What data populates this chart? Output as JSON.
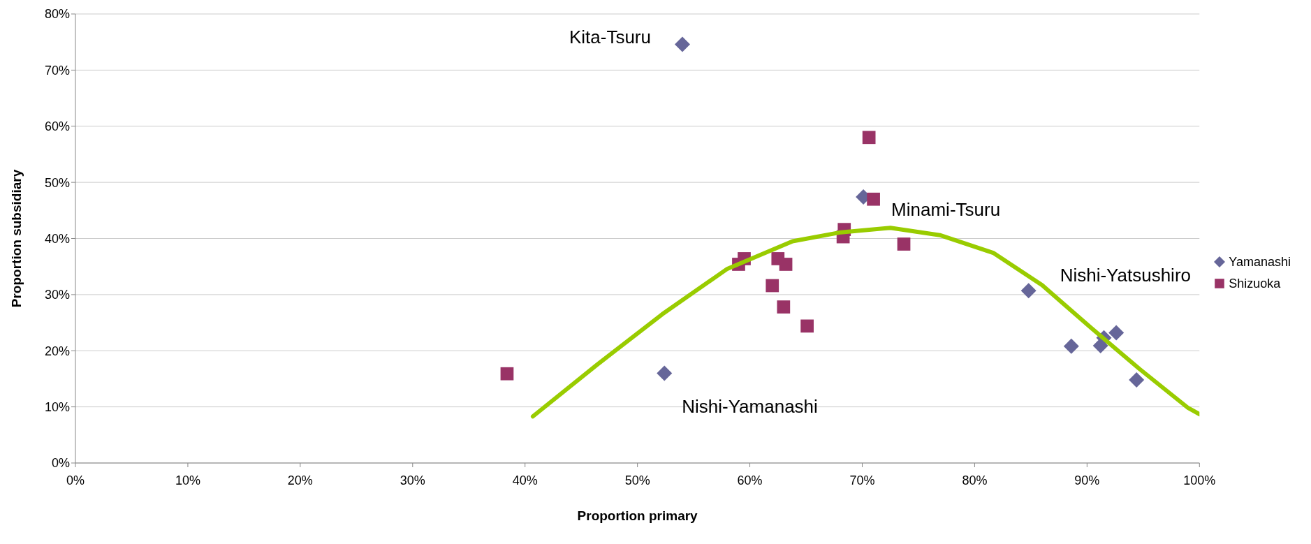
{
  "chart_data": {
    "type": "scatter",
    "xlabel": "Proportion primary",
    "ylabel": "Proportion subsidiary",
    "xlim": [
      0,
      100
    ],
    "ylim": [
      0,
      80
    ],
    "xticks": [
      {
        "value": 0,
        "label": "0%"
      },
      {
        "value": 10,
        "label": "10%"
      },
      {
        "value": 20,
        "label": "20%"
      },
      {
        "value": 30,
        "label": "30%"
      },
      {
        "value": 40,
        "label": "40%"
      },
      {
        "value": 50,
        "label": "50%"
      },
      {
        "value": 60,
        "label": "60%"
      },
      {
        "value": 70,
        "label": "70%"
      },
      {
        "value": 80,
        "label": "80%"
      },
      {
        "value": 90,
        "label": "90%"
      },
      {
        "value": 100,
        "label": "100%"
      }
    ],
    "yticks": [
      {
        "value": 0,
        "label": "0%"
      },
      {
        "value": 10,
        "label": "10%"
      },
      {
        "value": 20,
        "label": "20%"
      },
      {
        "value": 30,
        "label": "30%"
      },
      {
        "value": 40,
        "label": "40%"
      },
      {
        "value": 50,
        "label": "50%"
      },
      {
        "value": 60,
        "label": "60%"
      },
      {
        "value": 70,
        "label": "70%"
      },
      {
        "value": 80,
        "label": "80%"
      }
    ],
    "grid": "y",
    "legend": "right",
    "series": [
      {
        "name": "Yamanashi",
        "color": "#666699",
        "marker": "diamond",
        "x": [
          54.0,
          52.4,
          70.1,
          84.8,
          88.6,
          91.2,
          91.5,
          92.6,
          94.4
        ],
        "values": [
          74.6,
          16.0,
          47.4,
          30.7,
          20.8,
          20.9,
          22.3,
          23.2,
          14.8
        ]
      },
      {
        "name": "Shizuoka",
        "color": "#993366",
        "marker": "square",
        "x": [
          38.4,
          59.0,
          59.5,
          62.0,
          62.5,
          63.0,
          63.2,
          65.1,
          68.3,
          68.4,
          70.6,
          71.0,
          73.7
        ],
        "values": [
          15.9,
          35.4,
          36.4,
          31.6,
          36.4,
          27.8,
          35.4,
          24.4,
          40.3,
          41.6,
          58.0,
          47.0,
          39.0
        ]
      },
      {
        "type": "line",
        "color": "#99cc00",
        "marker": "none",
        "x": [
          40.7,
          46.4,
          52.2,
          58.0,
          63.8,
          68.1,
          72.5,
          76.9,
          81.7,
          86.0,
          90.4,
          94.7,
          99.0,
          100
        ],
        "values": [
          8.3,
          17.5,
          26.5,
          34.6,
          39.5,
          41.1,
          41.9,
          40.6,
          37.4,
          31.7,
          24.0,
          16.7,
          9.8,
          8.7
        ]
      }
    ],
    "annotations": [
      {
        "text": "Kita-Tsuru",
        "x": 54.0,
        "y": 74.6
      },
      {
        "text": "Nishi-Yamanashi",
        "x": 52.4,
        "y": 16.0
      },
      {
        "text": "Minami-Tsuru",
        "x": 70.1,
        "y": 47.4
      },
      {
        "text": "Nishi-Yatsushiro",
        "x": 84.8,
        "y": 30.7
      }
    ]
  }
}
